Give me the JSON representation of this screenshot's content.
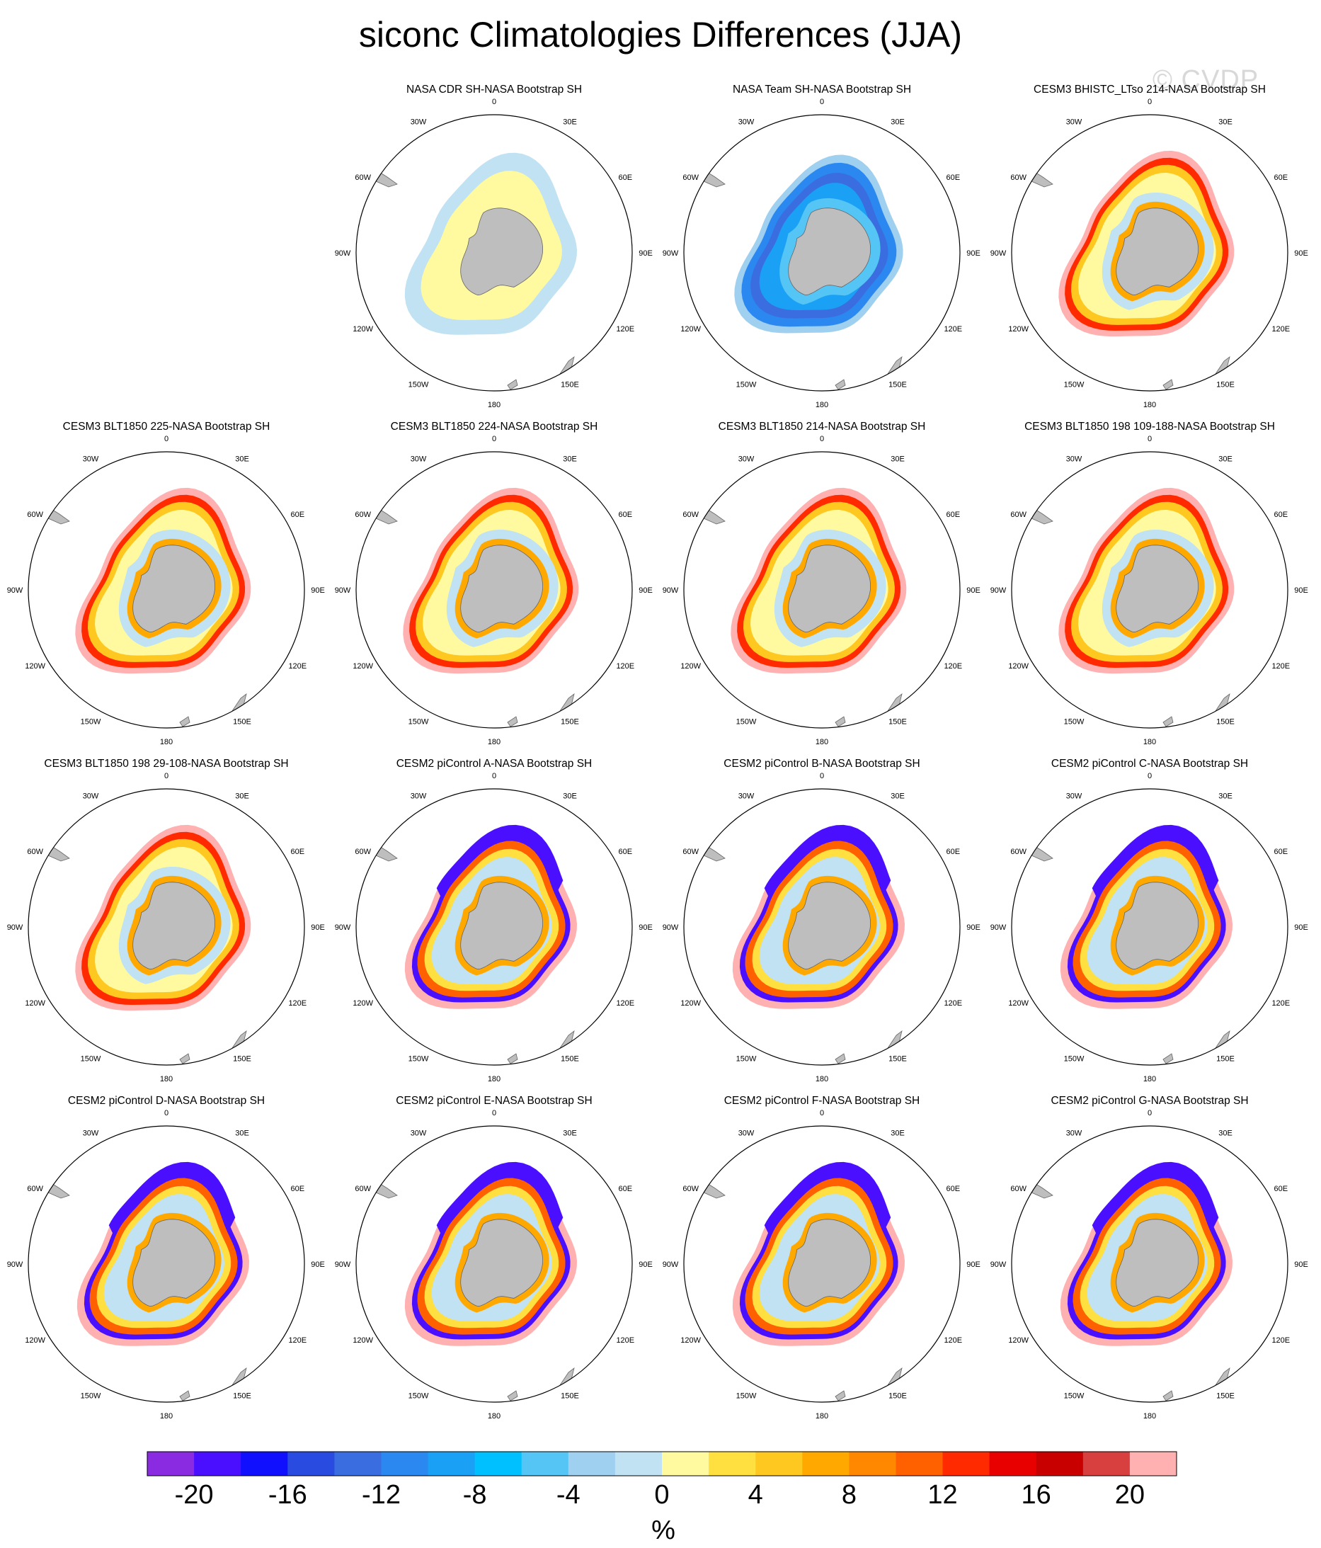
{
  "title": "siconc Climatologies Differences (JJA)",
  "watermark": "© CVDP",
  "longitude_labels": [
    "0",
    "30E",
    "60E",
    "90E",
    "120E",
    "150E",
    "180",
    "150W",
    "120W",
    "90W",
    "60W",
    "30W"
  ],
  "panels": [
    {
      "title": "NASA CDR SH-NASA Bootstrap SH",
      "pattern": "cdr"
    },
    {
      "title": "NASA Team SH-NASA Bootstrap SH",
      "pattern": "team"
    },
    {
      "title": "CESM3 BHISTC_LTso 214-NASA Bootstrap SH",
      "pattern": "cesm3"
    },
    {
      "title": "CESM3 BLT1850 225-NASA Bootstrap SH",
      "pattern": "cesm3"
    },
    {
      "title": "CESM3 BLT1850 224-NASA Bootstrap SH",
      "pattern": "cesm3"
    },
    {
      "title": "CESM3 BLT1850 214-NASA Bootstrap SH",
      "pattern": "cesm3"
    },
    {
      "title": "CESM3 BLT1850 198 109-188-NASA Bootstrap SH",
      "pattern": "cesm3"
    },
    {
      "title": "CESM3 BLT1850 198 29-108-NASA Bootstrap SH",
      "pattern": "cesm3"
    },
    {
      "title": "CESM2 piControl A-NASA Bootstrap SH",
      "pattern": "cesm2"
    },
    {
      "title": "CESM2 piControl B-NASA Bootstrap SH",
      "pattern": "cesm2"
    },
    {
      "title": "CESM2 piControl C-NASA Bootstrap SH",
      "pattern": "cesm2"
    },
    {
      "title": "CESM2 piControl D-NASA Bootstrap SH",
      "pattern": "cesm2"
    },
    {
      "title": "CESM2 piControl E-NASA Bootstrap SH",
      "pattern": "cesm2"
    },
    {
      "title": "CESM2 piControl F-NASA Bootstrap SH",
      "pattern": "cesm2"
    },
    {
      "title": "CESM2 piControl G-NASA Bootstrap SH",
      "pattern": "cesm2"
    }
  ],
  "colorbar": {
    "colors": [
      "#8a2be2",
      "#4b0fff",
      "#1010ff",
      "#2a4be0",
      "#3a6ee0",
      "#2a88f0",
      "#1aa0f5",
      "#00c0ff",
      "#55c5f5",
      "#9fd0ef",
      "#c0e2f2",
      "#fffaa0",
      "#ffe040",
      "#ffc820",
      "#ffa800",
      "#ff8800",
      "#ff6000",
      "#ff2a00",
      "#e80000",
      "#c80000",
      "#d84040",
      "#ffb0b0"
    ],
    "tick_labels": [
      "-20",
      "-16",
      "-12",
      "-8",
      "-4",
      "0",
      "4",
      "8",
      "12",
      "16",
      "20"
    ],
    "units": "%"
  },
  "colors": {
    "land": "#bebebe",
    "land_edge": "#666666"
  }
}
